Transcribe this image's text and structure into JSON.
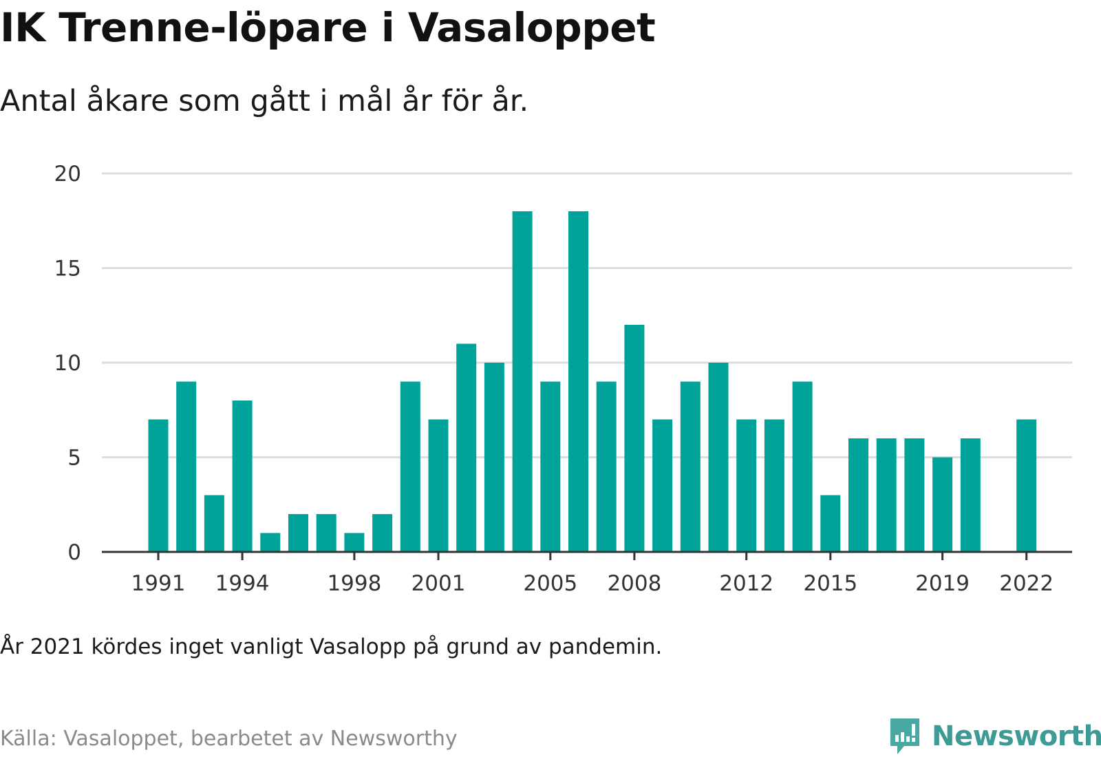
{
  "title": "IK Trenne-löpare i Vasaloppet",
  "subtitle": "Antal åkare som gått i mål år för år.",
  "note": "År 2021 kördes inget vanligt Vasalopp på grund av pandemin.",
  "source": "Källa: Vasaloppet, bearbetet av Newsworthy",
  "brand": {
    "name": "Newsworthy",
    "icon": "newsworthy-logo-icon",
    "color": "#3e9a95"
  },
  "colors": {
    "bar": "#00a39a",
    "grid": "#dddddd",
    "axis": "#333333"
  },
  "chart_data": {
    "type": "bar",
    "title": "IK Trenne-löpare i Vasaloppet",
    "subtitle": "Antal åkare som gått i mål år för år.",
    "xlabel": "",
    "ylabel": "",
    "ylim": [
      0,
      20
    ],
    "yticks": [
      0,
      5,
      10,
      15,
      20
    ],
    "grid": true,
    "legend": "none",
    "x": [
      1991,
      1992,
      1993,
      1994,
      1995,
      1996,
      1997,
      1998,
      1999,
      2000,
      2001,
      2002,
      2003,
      2004,
      2005,
      2006,
      2007,
      2008,
      2009,
      2010,
      2011,
      2012,
      2013,
      2014,
      2015,
      2016,
      2017,
      2018,
      2019,
      2020,
      2021,
      2022
    ],
    "values": [
      7,
      9,
      3,
      8,
      1,
      2,
      2,
      1,
      2,
      9,
      7,
      11,
      10,
      18,
      9,
      18,
      9,
      12,
      7,
      9,
      10,
      7,
      7,
      9,
      3,
      6,
      6,
      6,
      5,
      6,
      null,
      7
    ],
    "xticks": [
      1991,
      1994,
      1998,
      2001,
      2005,
      2008,
      2012,
      2015,
      2019,
      2022
    ]
  }
}
